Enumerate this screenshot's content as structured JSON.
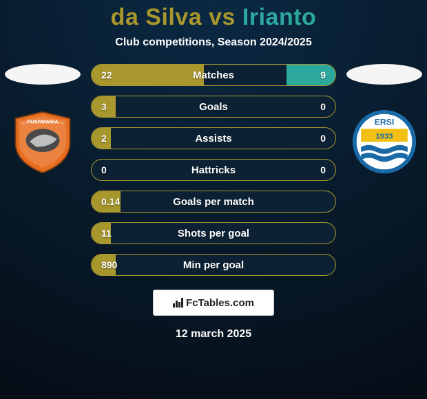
{
  "background": {
    "top_color": "#0b2944",
    "mid_color": "#081a2a",
    "bottom_color": "#050d16"
  },
  "title": {
    "left_text": "da Silva",
    "vs_text": " vs ",
    "right_text": "Irianto",
    "left_color": "#a8972c",
    "right_color": "#2ca89f",
    "fontsize": 34
  },
  "subtitle": "Club competitions, Season 2024/2025",
  "left_head_color": "#f5f5f5",
  "right_head_color": "#f5f5f5",
  "crest_left": {
    "bg": "#e8e8e8",
    "accent": "#e86d1f",
    "text": "PUSAMANIA"
  },
  "crest_right": {
    "border": "#1a6aa8",
    "band": "#f2c014",
    "year": "1933",
    "top_text": "ERSI",
    "wave_a": "#1a6aa8",
    "wave_b": "#ffffff"
  },
  "stat_style": {
    "left_fill": "#a8972c",
    "right_fill": "#2ca89f",
    "border_color": "#a8972c",
    "track_color": "#0c2234",
    "label_color": "#ffffff"
  },
  "stats": [
    {
      "label": "Matches",
      "left_val": "22",
      "right_val": "9",
      "left_pct": 46,
      "right_pct": 20
    },
    {
      "label": "Goals",
      "left_val": "3",
      "right_val": "0",
      "left_pct": 10,
      "right_pct": 0
    },
    {
      "label": "Assists",
      "left_val": "2",
      "right_val": "0",
      "left_pct": 8,
      "right_pct": 0
    },
    {
      "label": "Hattricks",
      "left_val": "0",
      "right_val": "0",
      "left_pct": 0,
      "right_pct": 0
    },
    {
      "label": "Goals per match",
      "left_val": "0.14",
      "right_val": "",
      "left_pct": 12,
      "right_pct": 0
    },
    {
      "label": "Shots per goal",
      "left_val": "11",
      "right_val": "",
      "left_pct": 8,
      "right_pct": 0
    },
    {
      "label": "Min per goal",
      "left_val": "890",
      "right_val": "",
      "left_pct": 10,
      "right_pct": 0
    }
  ],
  "footer": {
    "brand_text": "FcTables.com",
    "date_text": "12 march 2025"
  }
}
